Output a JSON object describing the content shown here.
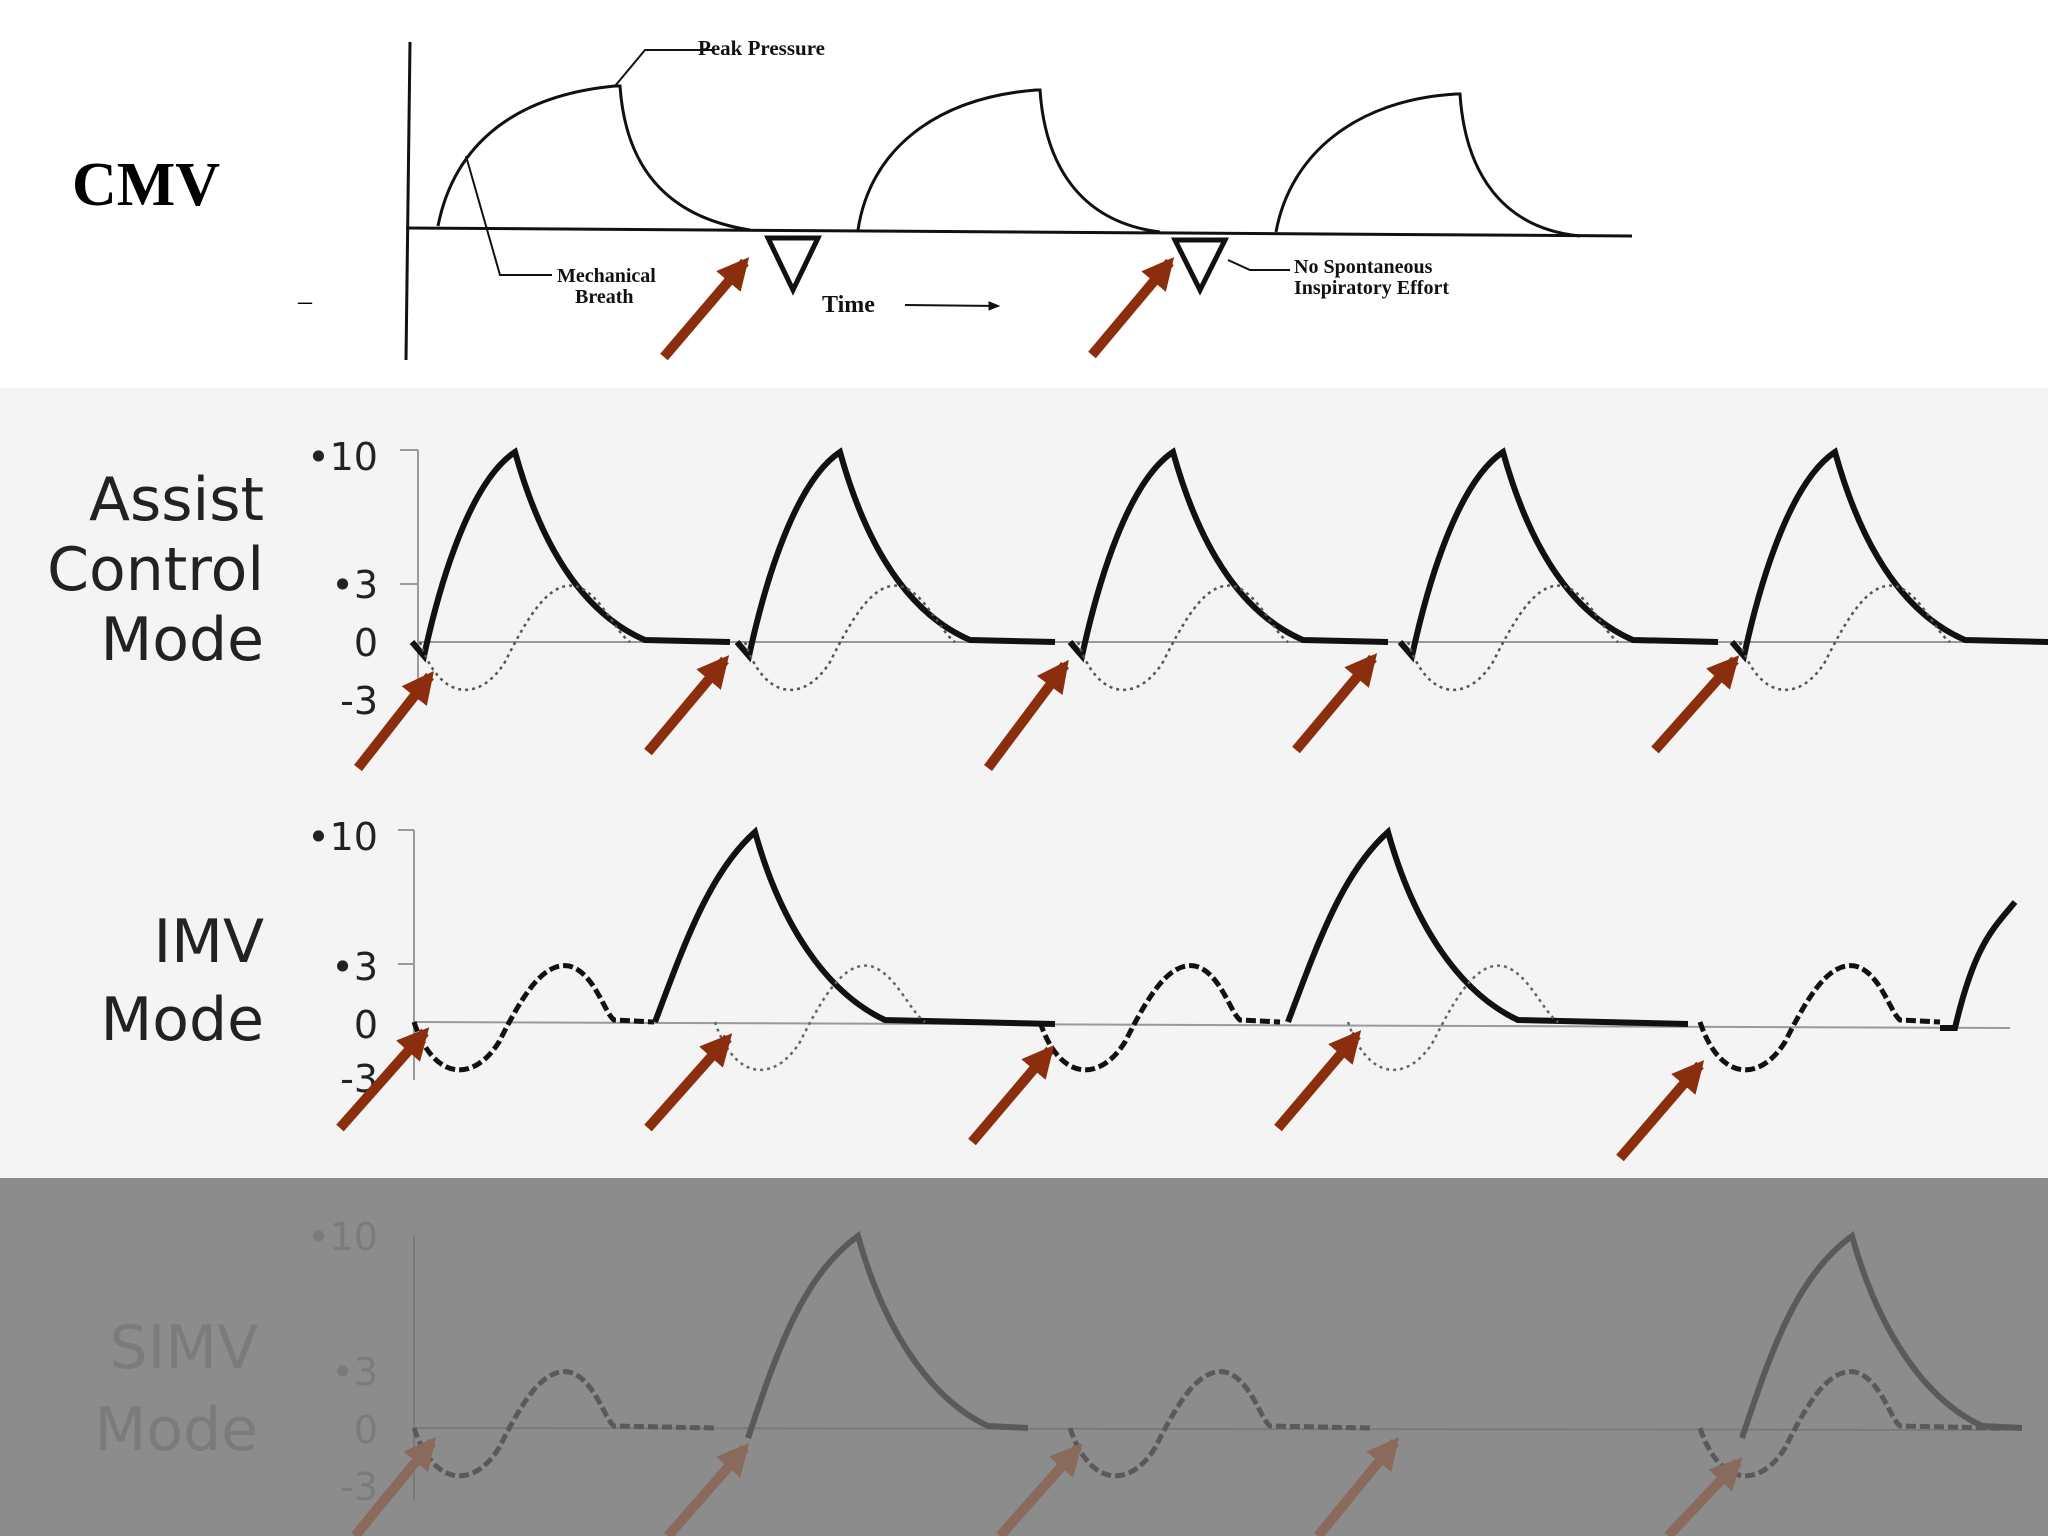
{
  "cmv": {
    "title": "CMV",
    "peak_label": "Peak Pressure",
    "mech_label_1": "Mechanical",
    "mech_label_2": "Breath",
    "time_label": "Time",
    "no_effort_1": "No Spontaneous",
    "no_effort_2": "Inspiratory Effort",
    "dash": "–"
  },
  "assist": {
    "line1": "Assist",
    "line2": "Control",
    "line3": "Mode",
    "ticks": [
      "•10",
      "•3",
      "0",
      "-3"
    ]
  },
  "imv": {
    "line1": "IMV",
    "line2": "Mode",
    "ticks": [
      "•10",
      "•3",
      "0",
      "-3"
    ]
  },
  "simv": {
    "line1": "SIMV",
    "line2": "Mode",
    "ticks": [
      "•10",
      "•3",
      "0",
      "-3"
    ]
  },
  "colors": {
    "arrow": "#8b2e0e",
    "trace": "#111111",
    "panel_bg": "#f4f4f4",
    "simv_bg": "#8c8c8c",
    "simv_trace": "#5a5a5a",
    "simv_text": "#7b7b7b",
    "simv_arrow": "#8a6a5c"
  }
}
